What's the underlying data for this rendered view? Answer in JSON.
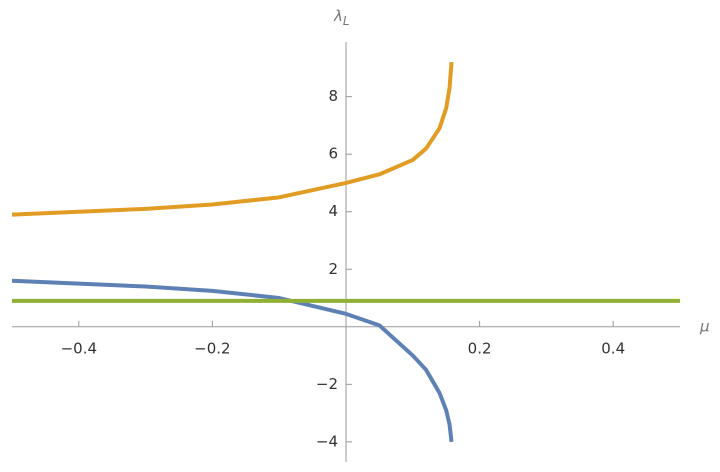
{
  "chart_data": {
    "type": "line",
    "xlabel": "μ",
    "ylabel": "λ",
    "ylabel_subscript": "L",
    "xlim": [
      -0.5,
      0.5
    ],
    "ylim": [
      -4.7,
      9.9
    ],
    "xticks": [
      {
        "value": -0.4,
        "label": "−0.4"
      },
      {
        "value": -0.2,
        "label": "−0.2"
      },
      0.2,
      0.4
    ],
    "yticks": [
      {
        "value": -4,
        "label": "−4"
      },
      {
        "value": -2,
        "label": "−2"
      },
      2,
      4,
      6,
      8
    ],
    "series": [
      {
        "color": "#5e81b5",
        "x": [
          -0.5,
          -0.4,
          -0.3,
          -0.2,
          -0.1,
          0,
          0.05,
          0.1,
          0.12,
          0.14,
          0.15,
          0.155,
          0.158
        ],
        "values": [
          1.6,
          1.5,
          1.4,
          1.25,
          1.0,
          0.45,
          0.05,
          -1.0,
          -1.5,
          -2.3,
          -2.9,
          -3.4,
          -4.0
        ]
      },
      {
        "color": "#e19c24",
        "x": [
          -0.5,
          -0.4,
          -0.3,
          -0.2,
          -0.1,
          0,
          0.05,
          0.1,
          0.12,
          0.14,
          0.15,
          0.155,
          0.158
        ],
        "values": [
          3.9,
          4.0,
          4.1,
          4.25,
          4.5,
          5.0,
          5.3,
          5.8,
          6.2,
          6.9,
          7.6,
          8.3,
          9.2
        ]
      },
      {
        "color": "#8fb032",
        "x": [
          -0.5,
          0.5
        ],
        "values": [
          0.9,
          0.9
        ]
      }
    ]
  }
}
